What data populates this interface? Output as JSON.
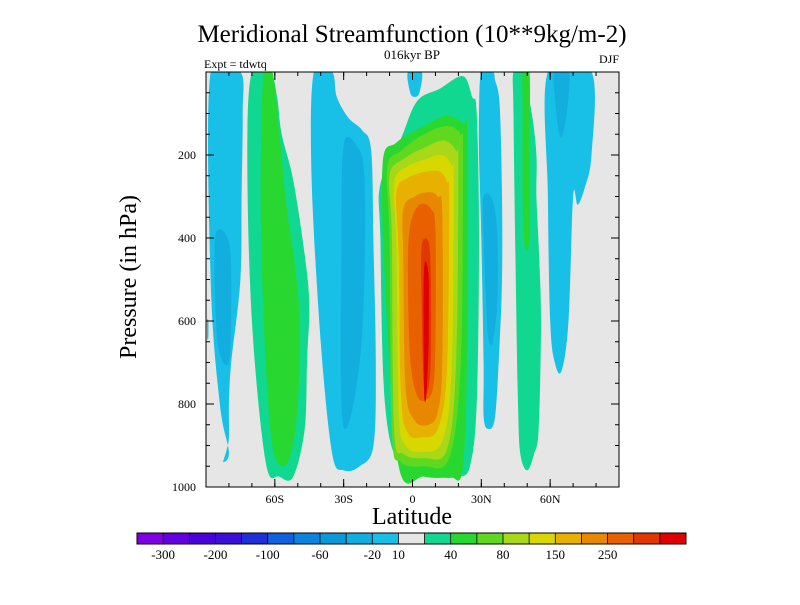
{
  "chart_data": {
    "type": "heatmap",
    "title": "Meridional Streamfunction (10**9kg/m-2)",
    "subtitle": "016kyr BP",
    "left_annotation": "Expt = tdwtq",
    "right_annotation": "DJF",
    "xlabel": "Latitude",
    "ylabel": "Pressure (in hPa)",
    "xlim": [
      -90,
      90
    ],
    "ylim": [
      1000,
      0
    ],
    "x_ticks": [
      {
        "value": -60,
        "label": "60S"
      },
      {
        "value": -30,
        "label": "30S"
      },
      {
        "value": 0,
        "label": "0"
      },
      {
        "value": 30,
        "label": "30N"
      },
      {
        "value": 60,
        "label": "60N"
      }
    ],
    "y_ticks": [
      {
        "value": 200,
        "label": "200"
      },
      {
        "value": 400,
        "label": "400"
      },
      {
        "value": 600,
        "label": "600"
      },
      {
        "value": 800,
        "label": "800"
      },
      {
        "value": 1000,
        "label": "1000"
      }
    ],
    "colorbar": {
      "colors": [
        "#7f00e0",
        "#6400e0",
        "#4a00d8",
        "#3a10d8",
        "#1f30d8",
        "#1060e0",
        "#0a84e0",
        "#0a9ad8",
        "#12aee0",
        "#18c0e8",
        "#e6e6e6",
        "#10d890",
        "#28d830",
        "#60d820",
        "#a8d818",
        "#d8d800",
        "#e8b000",
        "#e88800",
        "#e86000",
        "#e03800",
        "#e00000"
      ],
      "labels": [
        {
          "index": 1,
          "text": "-300"
        },
        {
          "index": 3,
          "text": "-200"
        },
        {
          "index": 5,
          "text": "-100"
        },
        {
          "index": 7,
          "text": "-60"
        },
        {
          "index": 9,
          "text": "-20"
        },
        {
          "index": 10,
          "text": "10"
        },
        {
          "index": 12,
          "text": "40"
        },
        {
          "index": 14,
          "text": "80"
        },
        {
          "index": 16,
          "text": "150"
        },
        {
          "index": 18,
          "text": "250"
        }
      ]
    },
    "contour_regions": [
      {
        "name": "sh-polar-cell",
        "level": -25,
        "color": "#18c0e8",
        "lat": [
          -88,
          -75,
          -74,
          -74.5,
          -75,
          -79,
          -80,
          -80,
          -81,
          -82.5,
          -80,
          -84,
          -88
        ],
        "p": [
          0,
          0,
          100,
          300,
          500,
          700,
          800,
          880,
          910,
          940,
          915,
          800,
          500
        ]
      },
      {
        "name": "sh-polar-core",
        "level": -45,
        "color": "#12aee0",
        "lat": [
          -86,
          -80,
          -79,
          -80,
          -85
        ],
        "p": [
          400,
          410,
          550,
          700,
          650
        ]
      },
      {
        "name": "sh-ferrel-cell",
        "level": 30,
        "color": "#10d890",
        "lat": [
          -70,
          -62,
          -59,
          -57,
          -52,
          -47,
          -45,
          -46,
          -47,
          -52,
          -58,
          -64,
          -70,
          -72
        ],
        "p": [
          0,
          0,
          60,
          150,
          260,
          440,
          560,
          700,
          860,
          975,
          975,
          940,
          600,
          200
        ]
      },
      {
        "name": "sh-ferrel-core",
        "level": 45,
        "color": "#28d830",
        "lat": [
          -65,
          -61,
          -58,
          -55,
          -51,
          -49,
          -51,
          -56,
          -62,
          -66
        ],
        "p": [
          0,
          0,
          150,
          320,
          480,
          640,
          860,
          950,
          860,
          400
        ]
      },
      {
        "name": "sh-mid-cell",
        "level": -25,
        "color": "#18c0e8",
        "lat": [
          -43,
          -35,
          -33,
          -28,
          -22,
          -18,
          -17,
          -16,
          -17,
          -23,
          -30,
          -35,
          -40,
          -44
        ],
        "p": [
          0,
          0,
          60,
          110,
          140,
          190,
          420,
          700,
          900,
          950,
          960,
          920,
          650,
          250
        ]
      },
      {
        "name": "sh-mid-core",
        "level": -45,
        "color": "#12aee0",
        "lat": [
          -30,
          -24,
          -21,
          -21,
          -23,
          -28,
          -31,
          -31
        ],
        "p": [
          175,
          180,
          250,
          500,
          700,
          850,
          800,
          420
        ]
      },
      {
        "name": "hadley-10",
        "level": 15,
        "color": "#10d890",
        "lat": [
          -14,
          -5,
          2,
          12,
          22,
          26,
          28,
          29,
          28,
          25,
          20,
          10,
          -5,
          -12,
          -14
        ],
        "p": [
          270,
          160,
          70,
          40,
          10,
          60,
          100,
          400,
          800,
          950,
          975,
          975,
          950,
          800,
          400
        ]
      },
      {
        "name": "hadley-40",
        "level": 45,
        "color": "#28d830",
        "lat": [
          -13,
          -7,
          5,
          15,
          22,
          24,
          24,
          22,
          16,
          5,
          -6,
          -12
        ],
        "p": [
          220,
          170,
          130,
          105,
          125,
          160,
          600,
          950,
          975,
          975,
          950,
          500
        ]
      },
      {
        "name": "hadley-60",
        "level": 65,
        "color": "#60d820",
        "lat": [
          -11,
          -5,
          5,
          15,
          21,
          22,
          21,
          16,
          5,
          -5,
          -9,
          -10
        ],
        "p": [
          230,
          190,
          150,
          130,
          150,
          200,
          700,
          930,
          950,
          940,
          870,
          400
        ]
      },
      {
        "name": "hadley-80",
        "level": 90,
        "color": "#a8d818",
        "lat": [
          -10,
          -4,
          6,
          14,
          19,
          20,
          19,
          15,
          5,
          -4,
          -8,
          -9
        ],
        "p": [
          250,
          210,
          180,
          165,
          190,
          230,
          700,
          910,
          930,
          920,
          860,
          400
        ]
      },
      {
        "name": "hadley-100",
        "level": 110,
        "color": "#d8d800",
        "lat": [
          -8,
          -3,
          6,
          13,
          17,
          18,
          17,
          13,
          4,
          -3,
          -6,
          -7
        ],
        "p": [
          270,
          230,
          210,
          200,
          225,
          270,
          720,
          890,
          915,
          900,
          820,
          420
        ]
      },
      {
        "name": "hadley-150",
        "level": 160,
        "color": "#e8b000",
        "lat": [
          -7,
          -2,
          6,
          12,
          15,
          16,
          15,
          11,
          4,
          -2,
          -5,
          -6
        ],
        "p": [
          290,
          255,
          240,
          240,
          265,
          310,
          720,
          860,
          880,
          870,
          780,
          440
        ]
      },
      {
        "name": "hadley-200",
        "level": 210,
        "color": "#e88800",
        "lat": [
          -4,
          1,
          7,
          11,
          13,
          13,
          11,
          7,
          1,
          -3,
          -4
        ],
        "p": [
          330,
          300,
          290,
          300,
          340,
          700,
          820,
          850,
          840,
          760,
          450
        ]
      },
      {
        "name": "hadley-250",
        "level": 260,
        "color": "#e86000",
        "lat": [
          -1,
          3,
          8,
          10,
          10,
          9,
          6,
          2,
          -1,
          -2
        ],
        "p": [
          370,
          320,
          330,
          380,
          650,
          760,
          790,
          780,
          690,
          480
        ]
      },
      {
        "name": "hadley-300",
        "level": 310,
        "color": "#e03800",
        "lat": [
          4,
          7,
          8,
          8,
          7,
          5,
          4
        ],
        "p": [
          420,
          410,
          500,
          680,
          760,
          760,
          560
        ]
      },
      {
        "name": "hadley-max",
        "level": 360,
        "color": "#e00000",
        "lat": [
          5,
          7,
          7,
          6,
          5
        ],
        "p": [
          480,
          490,
          650,
          780,
          760
        ]
      },
      {
        "name": "nh-top-cell",
        "level": -25,
        "color": "#18c0e8",
        "lat": [
          -2,
          4,
          3,
          1,
          -1
        ],
        "p": [
          0,
          0,
          50,
          60,
          50
        ]
      },
      {
        "name": "nh-mid-cell",
        "level": -25,
        "color": "#18c0e8",
        "lat": [
          30,
          35,
          36,
          38,
          39,
          39,
          38,
          36,
          33,
          31,
          31,
          30,
          29,
          29
        ],
        "p": [
          0,
          0,
          20,
          80,
          300,
          500,
          650,
          830,
          860,
          830,
          700,
          400,
          200,
          100
        ]
      },
      {
        "name": "nh-mid-core",
        "level": -45,
        "color": "#12aee0",
        "lat": [
          31,
          35,
          37,
          37,
          35,
          33,
          32,
          31
        ],
        "p": [
          300,
          310,
          400,
          550,
          650,
          640,
          550,
          400
        ]
      },
      {
        "name": "nh-ferrel-cell",
        "level": 15,
        "color": "#10d890",
        "lat": [
          44,
          48,
          52,
          54,
          54,
          55,
          56,
          55,
          53,
          50,
          47,
          46,
          45,
          44
        ],
        "p": [
          0,
          0,
          100,
          200,
          300,
          420,
          600,
          860,
          920,
          960,
          920,
          800,
          500,
          100
        ]
      },
      {
        "name": "nh-ferrel-core",
        "level": 45,
        "color": "#28d830",
        "lat": [
          48,
          51,
          51,
          51,
          49,
          48,
          48
        ],
        "p": [
          0,
          0,
          200,
          400,
          420,
          300,
          100
        ]
      },
      {
        "name": "nh-polar-cell",
        "level": -25,
        "color": "#18c0e8",
        "lat": [
          59,
          78,
          78,
          75,
          72,
          70,
          68,
          65,
          62,
          60,
          59
        ],
        "p": [
          0,
          0,
          200,
          280,
          320,
          300,
          600,
          720,
          700,
          600,
          300
        ]
      },
      {
        "name": "nh-polar-core",
        "level": -45,
        "color": "#12aee0",
        "lat": [
          62,
          68,
          68,
          66,
          64,
          62
        ],
        "p": [
          0,
          0,
          60,
          140,
          150,
          60
        ]
      },
      {
        "name": "sh-edge-strip",
        "level": -25,
        "color": "#18c0e8",
        "lat": [
          -89.5,
          -89,
          -89,
          -89.5
        ],
        "p": [
          600,
          600,
          640,
          640
        ]
      }
    ]
  }
}
